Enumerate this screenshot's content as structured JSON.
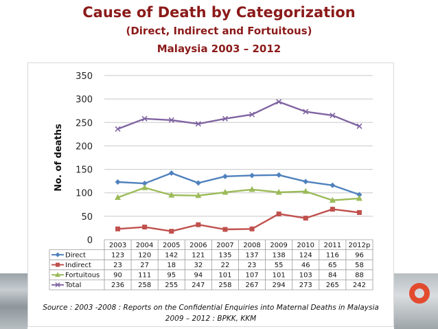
{
  "page": {
    "title_line1": "Cause of Death by Categorization",
    "title_line2": "(Direct, Indirect and Fortuitous)",
    "title_line3": "Malaysia   2003 – 2012",
    "source_line1": "Source : 2003 -2008 : Reports on the Confidential Enquiries into Maternal Deaths in Malaysia",
    "source_line2": "2009 – 2012 : BPKK, KKM"
  },
  "chart_data": {
    "type": "line",
    "title": "Cause of Death by Categorization (Direct, Indirect and Fortuitous) Malaysia 2003 – 2012",
    "xlabel": "",
    "ylabel": "No. of deaths",
    "ylim": [
      0,
      350
    ],
    "yticks": [
      0,
      50,
      100,
      150,
      200,
      250,
      300,
      350
    ],
    "grid": true,
    "legend": "data table below chart",
    "categories": [
      "2003",
      "2004",
      "2005",
      "2006",
      "2007",
      "2008",
      "2009",
      "2010",
      "2011",
      "2012p"
    ],
    "series": [
      {
        "name": "Direct",
        "color": "#4f81bd",
        "marker": "diamond",
        "values": [
          123,
          120,
          142,
          121,
          135,
          137,
          138,
          124,
          116,
          96
        ]
      },
      {
        "name": "Indirect",
        "color": "#c0504d",
        "marker": "square",
        "values": [
          23,
          27,
          18,
          32,
          22,
          23,
          55,
          46,
          65,
          58
        ]
      },
      {
        "name": "Fortuitous",
        "color": "#9bbb59",
        "marker": "triangle",
        "values": [
          90,
          111,
          95,
          94,
          101,
          107,
          101,
          103,
          84,
          88
        ]
      },
      {
        "name": "Total",
        "color": "#8064a2",
        "marker": "x",
        "values": [
          236,
          258,
          255,
          247,
          258,
          267,
          294,
          273,
          265,
          242
        ]
      }
    ]
  }
}
